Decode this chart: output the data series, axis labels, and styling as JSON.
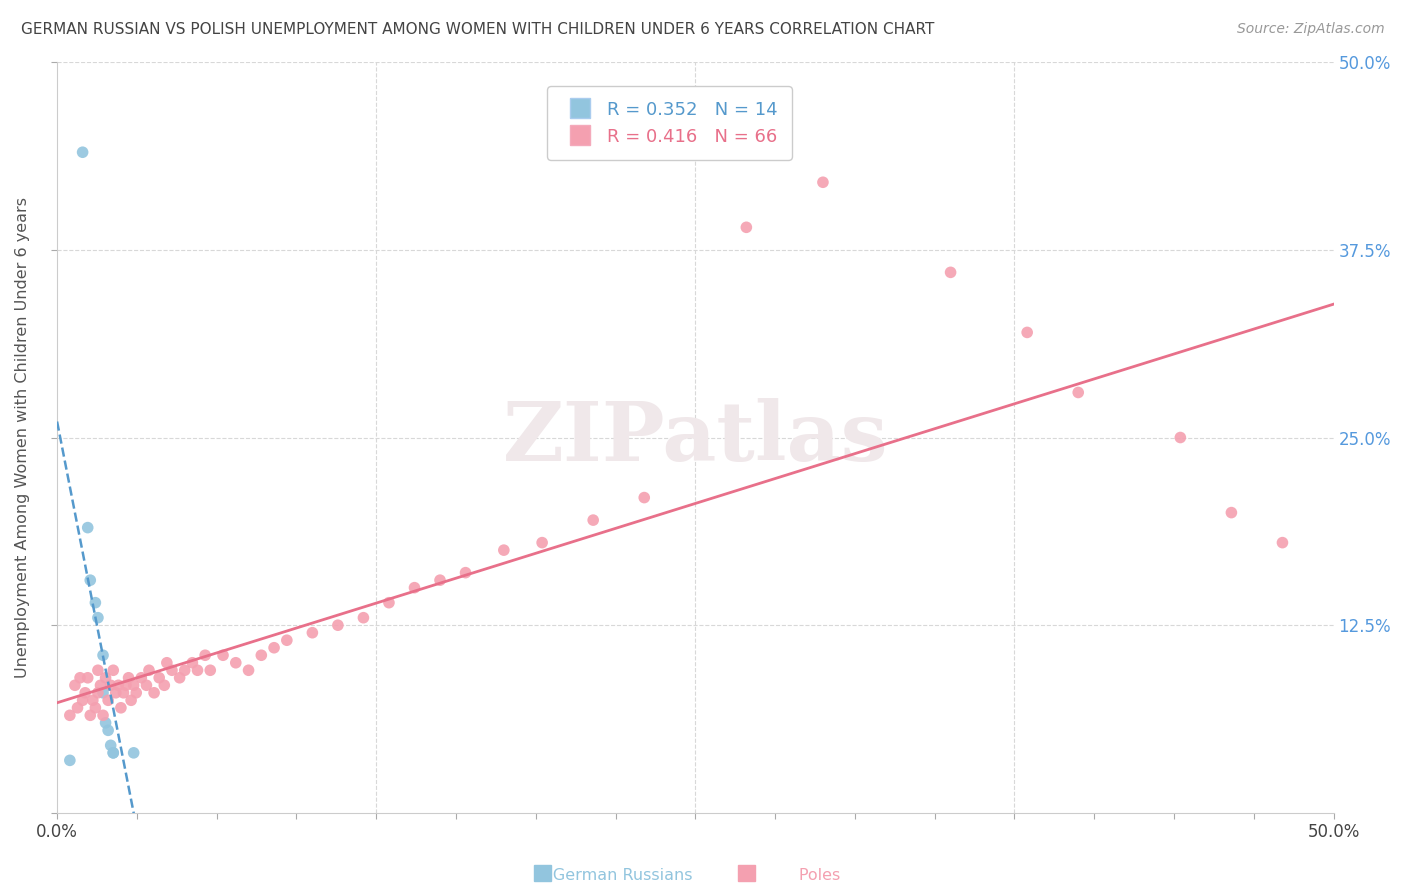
{
  "title": "GERMAN RUSSIAN VS POLISH UNEMPLOYMENT AMONG WOMEN WITH CHILDREN UNDER 6 YEARS CORRELATION CHART",
  "source": "Source: ZipAtlas.com",
  "ylabel": "Unemployment Among Women with Children Under 6 years",
  "xlim": [
    0.0,
    0.5
  ],
  "ylim": [
    0.0,
    0.5
  ],
  "gr_color": "#92c5de",
  "po_color": "#f4a0b0",
  "gr_line_color": "#5599cc",
  "po_line_color": "#e8708a",
  "right_tick_color": "#5599dd",
  "background_color": "#ffffff",
  "grid_color": "#d8d8d8",
  "title_color": "#444444",
  "source_color": "#999999",
  "ylabel_color": "#555555",
  "watermark_color": "#f5eef0",
  "german_russian_x": [
    0.005,
    0.01,
    0.012,
    0.013,
    0.015,
    0.016,
    0.018,
    0.018,
    0.019,
    0.02,
    0.021,
    0.022,
    0.022,
    0.03
  ],
  "german_russian_y": [
    0.035,
    0.44,
    0.19,
    0.155,
    0.14,
    0.13,
    0.105,
    0.08,
    0.06,
    0.055,
    0.045,
    0.04,
    0.04,
    0.04
  ],
  "poles_x": [
    0.005,
    0.007,
    0.008,
    0.009,
    0.01,
    0.011,
    0.012,
    0.013,
    0.014,
    0.015,
    0.016,
    0.016,
    0.017,
    0.018,
    0.019,
    0.02,
    0.021,
    0.022,
    0.023,
    0.024,
    0.025,
    0.026,
    0.027,
    0.028,
    0.029,
    0.03,
    0.031,
    0.033,
    0.035,
    0.036,
    0.038,
    0.04,
    0.042,
    0.043,
    0.045,
    0.048,
    0.05,
    0.053,
    0.055,
    0.058,
    0.06,
    0.065,
    0.07,
    0.075,
    0.08,
    0.085,
    0.09,
    0.1,
    0.11,
    0.12,
    0.13,
    0.14,
    0.15,
    0.16,
    0.175,
    0.19,
    0.21,
    0.23,
    0.27,
    0.3,
    0.35,
    0.38,
    0.4,
    0.44,
    0.46,
    0.48
  ],
  "poles_y": [
    0.065,
    0.085,
    0.07,
    0.09,
    0.075,
    0.08,
    0.09,
    0.065,
    0.075,
    0.07,
    0.08,
    0.095,
    0.085,
    0.065,
    0.09,
    0.075,
    0.085,
    0.095,
    0.08,
    0.085,
    0.07,
    0.08,
    0.085,
    0.09,
    0.075,
    0.085,
    0.08,
    0.09,
    0.085,
    0.095,
    0.08,
    0.09,
    0.085,
    0.1,
    0.095,
    0.09,
    0.095,
    0.1,
    0.095,
    0.105,
    0.095,
    0.105,
    0.1,
    0.095,
    0.105,
    0.11,
    0.115,
    0.12,
    0.125,
    0.13,
    0.14,
    0.15,
    0.155,
    0.16,
    0.175,
    0.18,
    0.195,
    0.21,
    0.39,
    0.42,
    0.36,
    0.32,
    0.28,
    0.25,
    0.2,
    0.18
  ]
}
